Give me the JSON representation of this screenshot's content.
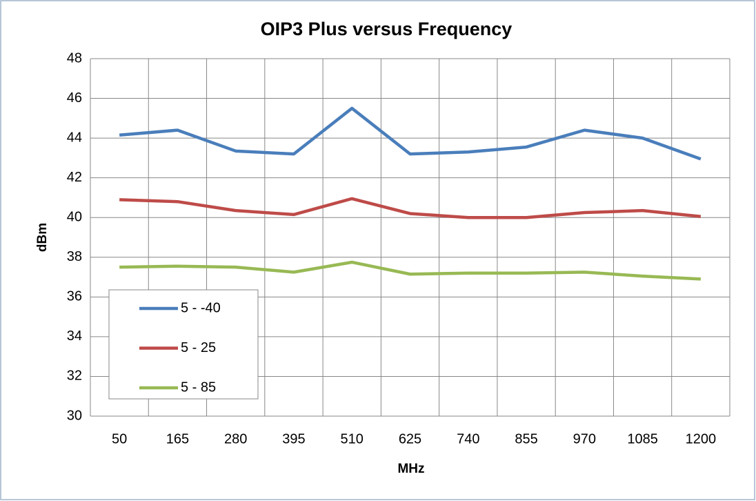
{
  "chart_data": {
    "type": "line",
    "title": "OIP3 Plus versus Frequency",
    "xlabel": "MHz",
    "ylabel": "dBm",
    "categories": [
      50,
      165,
      280,
      395,
      510,
      625,
      740,
      855,
      970,
      1085,
      1200
    ],
    "series": [
      {
        "name": "5 - -40",
        "color": "#4a7ebb",
        "values": [
          44.15,
          44.4,
          43.35,
          43.2,
          45.5,
          43.2,
          43.3,
          43.55,
          44.4,
          44.0,
          42.95
        ]
      },
      {
        "name": "5 - 25",
        "color": "#be4b48",
        "values": [
          40.9,
          40.8,
          40.35,
          40.15,
          40.95,
          40.2,
          40.0,
          40.0,
          40.25,
          40.35,
          40.05
        ]
      },
      {
        "name": "5 - 85",
        "color": "#98b954",
        "values": [
          37.5,
          37.55,
          37.5,
          37.25,
          37.75,
          37.15,
          37.2,
          37.2,
          37.25,
          37.05,
          36.9
        ]
      }
    ],
    "ylim": [
      30,
      48
    ],
    "yticks": [
      30,
      32,
      34,
      36,
      38,
      40,
      42,
      44,
      46,
      48
    ],
    "grid": true,
    "legend": "lower left"
  }
}
